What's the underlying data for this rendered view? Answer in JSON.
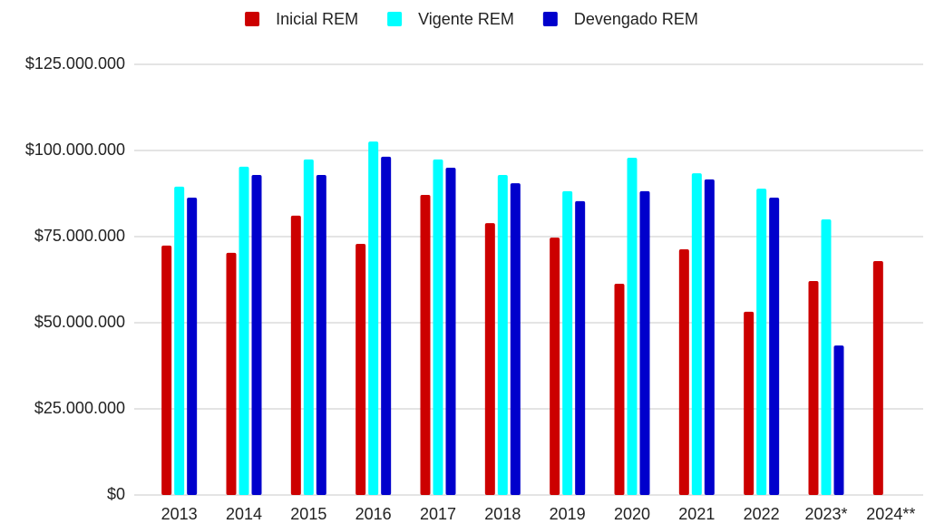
{
  "chart_data": {
    "type": "bar",
    "categories": [
      "2013",
      "2014",
      "2015",
      "2016",
      "2017",
      "2018",
      "2019",
      "2020",
      "2021",
      "2022",
      "2023*",
      "2024**"
    ],
    "series": [
      {
        "name": "Inicial REM",
        "color": "#cc0000",
        "values": [
          72400000,
          70300000,
          81100000,
          72900000,
          87100000,
          78900000,
          74700000,
          61300000,
          71300000,
          53200000,
          62100000,
          67900000
        ]
      },
      {
        "name": "Vigente REM",
        "color": "#00ffff",
        "values": [
          89500000,
          95300000,
          97400000,
          102600000,
          97400000,
          92900000,
          88200000,
          97900000,
          93400000,
          88900000,
          80000000,
          null
        ]
      },
      {
        "name": "Devengado REM",
        "color": "#0000cc",
        "values": [
          86300000,
          92900000,
          92900000,
          98200000,
          95000000,
          90500000,
          85300000,
          88200000,
          91600000,
          86300000,
          43400000,
          null
        ]
      }
    ],
    "ylim": [
      0,
      125000000
    ],
    "yticks": [
      {
        "value": 0,
        "label": "$0"
      },
      {
        "value": 25000000,
        "label": "$25.000.000"
      },
      {
        "value": 50000000,
        "label": "$50.000.000"
      },
      {
        "value": 75000000,
        "label": "$75.000.000"
      },
      {
        "value": 100000000,
        "label": "$100.000.000"
      },
      {
        "value": 125000000,
        "label": "$125.000.000"
      }
    ],
    "grid": true,
    "legend": "top"
  }
}
